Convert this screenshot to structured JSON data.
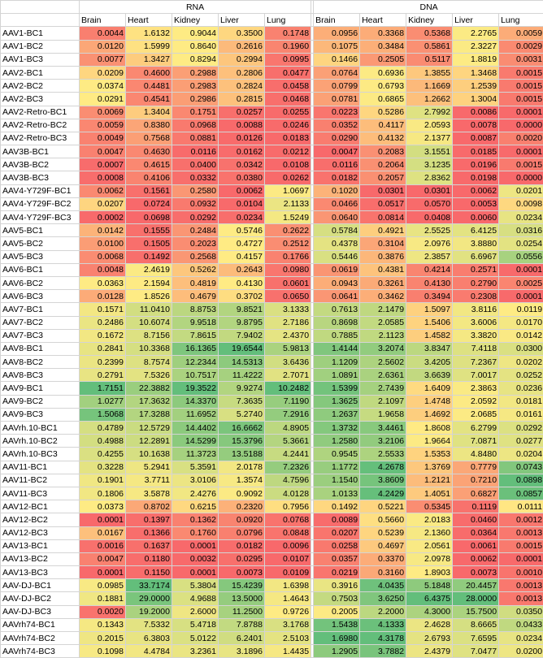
{
  "groups": [
    {
      "key": "rna",
      "label": "RNA"
    },
    {
      "key": "dna",
      "label": "DNA"
    }
  ],
  "tissues": [
    "Brain",
    "Heart",
    "Kidney",
    "Liver",
    "Lung"
  ],
  "rows": [
    {
      "label": "AAV1-BC1",
      "rna": [
        "0.0044",
        "1.6132",
        "0.9044",
        "0.3500",
        "0.1748"
      ],
      "dna": [
        "0.0956",
        "0.3368",
        "0.5368",
        "2.2765",
        "0.0059"
      ]
    },
    {
      "label": "AAV1-BC2",
      "rna": [
        "0.0120",
        "1.5999",
        "0.8640",
        "0.2616",
        "0.1960"
      ],
      "dna": [
        "0.1075",
        "0.3484",
        "0.5861",
        "2.3227",
        "0.0029"
      ]
    },
    {
      "label": "AAV1-BC3",
      "rna": [
        "0.0077",
        "1.3427",
        "0.8294",
        "0.2994",
        "0.0995"
      ],
      "dna": [
        "0.1466",
        "0.2505",
        "0.5117",
        "1.8819",
        "0.0031"
      ]
    },
    {
      "label": "AAV2-BC1",
      "rna": [
        "0.0209",
        "0.4600",
        "0.2988",
        "0.2806",
        "0.0477"
      ],
      "dna": [
        "0.0764",
        "0.6936",
        "1.3855",
        "1.3468",
        "0.0015"
      ]
    },
    {
      "label": "AAV2-BC2",
      "rna": [
        "0.0374",
        "0.4481",
        "0.2983",
        "0.2824",
        "0.0458"
      ],
      "dna": [
        "0.0799",
        "0.6793",
        "1.1669",
        "1.2539",
        "0.0015"
      ]
    },
    {
      "label": "AAV2-BC3",
      "rna": [
        "0.0291",
        "0.4541",
        "0.2986",
        "0.2815",
        "0.0468"
      ],
      "dna": [
        "0.0781",
        "0.6865",
        "1.2662",
        "1.3004",
        "0.0015"
      ]
    },
    {
      "label": "AAV2-Retro-BC1",
      "rna": [
        "0.0069",
        "1.3404",
        "0.1751",
        "0.0257",
        "0.0255"
      ],
      "dna": [
        "0.0223",
        "0.5286",
        "2.7992",
        "0.0086",
        "0.0001"
      ]
    },
    {
      "label": "AAV2-Retro-BC2",
      "rna": [
        "0.0059",
        "0.8380",
        "0.0968",
        "0.0088",
        "0.0246"
      ],
      "dna": [
        "0.0352",
        "0.4117",
        "2.0593",
        "0.0078",
        "0.0000"
      ]
    },
    {
      "label": "AAV2-Retro-BC3",
      "rna": [
        "0.0049",
        "0.7568",
        "0.0881",
        "0.0126",
        "0.0183"
      ],
      "dna": [
        "0.0290",
        "0.4132",
        "2.1377",
        "0.0087",
        "0.0020"
      ]
    },
    {
      "label": "AAV3B-BC1",
      "rna": [
        "0.0047",
        "0.4630",
        "0.0116",
        "0.0162",
        "0.0212"
      ],
      "dna": [
        "0.0047",
        "0.2083",
        "3.1551",
        "0.0185",
        "0.0001"
      ]
    },
    {
      "label": "AAV3B-BC2",
      "rna": [
        "0.0007",
        "0.4615",
        "0.0400",
        "0.0342",
        "0.0108"
      ],
      "dna": [
        "0.0116",
        "0.2064",
        "3.1235",
        "0.0196",
        "0.0015"
      ]
    },
    {
      "label": "AAV3B-BC3",
      "rna": [
        "0.0008",
        "0.4106",
        "0.0332",
        "0.0380",
        "0.0262"
      ],
      "dna": [
        "0.0182",
        "0.2057",
        "2.8362",
        "0.0198",
        "0.0000"
      ]
    },
    {
      "label": "AAV4-Y729F-BC1",
      "rna": [
        "0.0062",
        "0.1561",
        "0.2580",
        "0.0062",
        "1.0697"
      ],
      "dna": [
        "0.1020",
        "0.0301",
        "0.0301",
        "0.0062",
        "0.0201"
      ]
    },
    {
      "label": "AAV4-Y729F-BC2",
      "rna": [
        "0.0207",
        "0.0724",
        "0.0932",
        "0.0104",
        "2.1133"
      ],
      "dna": [
        "0.0466",
        "0.0517",
        "0.0570",
        "0.0053",
        "0.0098"
      ]
    },
    {
      "label": "AAV4-Y729F-BC3",
      "rna": [
        "0.0002",
        "0.0698",
        "0.0292",
        "0.0234",
        "1.5249"
      ],
      "dna": [
        "0.0640",
        "0.0814",
        "0.0408",
        "0.0060",
        "0.0234"
      ]
    },
    {
      "label": "AAV5-BC1",
      "rna": [
        "0.0142",
        "0.1555",
        "0.2484",
        "0.5746",
        "0.2622"
      ],
      "dna": [
        "0.5784",
        "0.4921",
        "2.5525",
        "6.4125",
        "0.0316"
      ]
    },
    {
      "label": "AAV5-BC2",
      "rna": [
        "0.0100",
        "0.1505",
        "0.2023",
        "0.4727",
        "0.2512"
      ],
      "dna": [
        "0.4378",
        "0.3104",
        "2.0976",
        "3.8880",
        "0.0254"
      ]
    },
    {
      "label": "AAV5-BC3",
      "rna": [
        "0.0068",
        "0.1492",
        "0.2568",
        "0.4157",
        "0.1766"
      ],
      "dna": [
        "0.5446",
        "0.3876",
        "2.3857",
        "6.6967",
        "0.0556"
      ]
    },
    {
      "label": "AAV6-BC1",
      "rna": [
        "0.0048",
        "2.4619",
        "0.5262",
        "0.2643",
        "0.0980"
      ],
      "dna": [
        "0.0619",
        "0.4381",
        "0.4214",
        "0.2571",
        "0.0001"
      ]
    },
    {
      "label": "AAV6-BC2",
      "rna": [
        "0.0363",
        "2.1594",
        "0.4819",
        "0.4130",
        "0.0601"
      ],
      "dna": [
        "0.0943",
        "0.3261",
        "0.4130",
        "0.2790",
        "0.0025"
      ]
    },
    {
      "label": "AAV6-BC3",
      "rna": [
        "0.0128",
        "1.8526",
        "0.4679",
        "0.3702",
        "0.0650"
      ],
      "dna": [
        "0.0641",
        "0.3462",
        "0.3494",
        "0.2308",
        "0.0001"
      ]
    },
    {
      "label": "AAV7-BC1",
      "rna": [
        "0.1571",
        "11.0410",
        "8.8753",
        "9.8521",
        "3.1333"
      ],
      "dna": [
        "0.7613",
        "2.1479",
        "1.5097",
        "3.8116",
        "0.0119"
      ]
    },
    {
      "label": "AAV7-BC2",
      "rna": [
        "0.2486",
        "10.6074",
        "9.9518",
        "9.8795",
        "2.7186"
      ],
      "dna": [
        "0.8698",
        "2.0585",
        "1.5406",
        "3.6006",
        "0.0170"
      ]
    },
    {
      "label": "AAV7-BC3",
      "rna": [
        "0.1672",
        "8.7156",
        "7.8615",
        "7.9402",
        "2.4370"
      ],
      "dna": [
        "0.7885",
        "2.1123",
        "1.4582",
        "3.3820",
        "0.0142"
      ]
    },
    {
      "label": "AAV8-BC1",
      "rna": [
        "0.2841",
        "10.3368",
        "16.1365",
        "19.6544",
        "5.9813"
      ],
      "dna": [
        "1.4144",
        "3.2074",
        "3.8347",
        "7.4118",
        "0.0300"
      ]
    },
    {
      "label": "AAV8-BC2",
      "rna": [
        "0.2399",
        "8.7574",
        "12.2344",
        "14.5313",
        "3.6436"
      ],
      "dna": [
        "1.1209",
        "2.5602",
        "3.4205",
        "7.2367",
        "0.0202"
      ]
    },
    {
      "label": "AAV8-BC3",
      "rna": [
        "0.2791",
        "7.5326",
        "10.7517",
        "11.4222",
        "2.7071"
      ],
      "dna": [
        "1.0891",
        "2.6361",
        "3.6639",
        "7.0017",
        "0.0252"
      ]
    },
    {
      "label": "AAV9-BC1",
      "rna": [
        "1.7151",
        "22.3882",
        "19.3522",
        "9.9274",
        "10.2482"
      ],
      "dna": [
        "1.5399",
        "2.7439",
        "1.6409",
        "2.3863",
        "0.0236"
      ]
    },
    {
      "label": "AAV9-BC2",
      "rna": [
        "1.0277",
        "17.3632",
        "14.3370",
        "7.3635",
        "7.1190"
      ],
      "dna": [
        "1.3625",
        "2.1097",
        "1.4748",
        "2.0592",
        "0.0181"
      ]
    },
    {
      "label": "AAV9-BC3",
      "rna": [
        "1.5068",
        "17.3288",
        "11.6952",
        "5.2740",
        "7.2916"
      ],
      "dna": [
        "1.2637",
        "1.9658",
        "1.4692",
        "2.0685",
        "0.0161"
      ]
    },
    {
      "label": "AAVrh.10-BC1",
      "rna": [
        "0.4789",
        "12.5729",
        "14.4402",
        "16.6662",
        "4.8905"
      ],
      "dna": [
        "1.3732",
        "3.4461",
        "1.8608",
        "6.2799",
        "0.0292"
      ]
    },
    {
      "label": "AAVrh.10-BC2",
      "rna": [
        "0.4988",
        "12.2891",
        "14.5299",
        "15.3796",
        "5.3661"
      ],
      "dna": [
        "1.2580",
        "3.2106",
        "1.9664",
        "7.0871",
        "0.0277"
      ]
    },
    {
      "label": "AAVrh.10-BC3",
      "rna": [
        "0.4255",
        "10.1638",
        "11.3723",
        "13.5188",
        "4.2441"
      ],
      "dna": [
        "0.9545",
        "2.5533",
        "1.5353",
        "4.8480",
        "0.0204"
      ]
    },
    {
      "label": "AAV11-BC1",
      "rna": [
        "0.3228",
        "5.2941",
        "5.3591",
        "2.0178",
        "7.2326"
      ],
      "dna": [
        "1.1772",
        "4.2678",
        "1.3769",
        "0.7779",
        "0.0743"
      ]
    },
    {
      "label": "AAV11-BC2",
      "rna": [
        "0.1901",
        "3.7711",
        "3.0106",
        "1.3574",
        "4.7596"
      ],
      "dna": [
        "1.1540",
        "3.8609",
        "1.2121",
        "0.7210",
        "0.0898"
      ]
    },
    {
      "label": "AAV11-BC3",
      "rna": [
        "0.1806",
        "3.5878",
        "2.4276",
        "0.9092",
        "4.0128"
      ],
      "dna": [
        "1.0133",
        "4.2429",
        "1.4051",
        "0.6827",
        "0.0857"
      ]
    },
    {
      "label": "AAV12-BC1",
      "rna": [
        "0.0373",
        "0.8702",
        "0.6215",
        "0.2320",
        "0.7956"
      ],
      "dna": [
        "0.1492",
        "0.5221",
        "0.5345",
        "0.1119",
        "0.0111"
      ]
    },
    {
      "label": "AAV12-BC2",
      "rna": [
        "0.0001",
        "0.1397",
        "0.1362",
        "0.0920",
        "0.0768"
      ],
      "dna": [
        "0.0089",
        "0.5660",
        "2.0183",
        "0.0460",
        "0.0012"
      ]
    },
    {
      "label": "AAV12-BC3",
      "rna": [
        "0.0167",
        "0.1366",
        "0.1760",
        "0.0796",
        "0.0848"
      ],
      "dna": [
        "0.0207",
        "0.5239",
        "2.1360",
        "0.0364",
        "0.0013"
      ]
    },
    {
      "label": "AAV13-BC1",
      "rna": [
        "0.0016",
        "0.1637",
        "0.0001",
        "0.0182",
        "0.0096"
      ],
      "dna": [
        "0.0258",
        "0.4697",
        "2.0561",
        "0.0061",
        "0.0015"
      ]
    },
    {
      "label": "AAV13-BC2",
      "rna": [
        "0.0047",
        "0.1180",
        "0.0032",
        "0.0295",
        "0.0107"
      ],
      "dna": [
        "0.0357",
        "0.3370",
        "2.0978",
        "0.0062",
        "0.0001"
      ]
    },
    {
      "label": "AAV13-BC3",
      "rna": [
        "0.0001",
        "0.1150",
        "0.0001",
        "0.0073",
        "0.0109"
      ],
      "dna": [
        "0.0219",
        "0.3160",
        "1.8903",
        "0.0073",
        "0.0010"
      ]
    },
    {
      "label": "AAV-DJ-BC1",
      "rna": [
        "0.0985",
        "33.7174",
        "5.3804",
        "15.4239",
        "1.6398"
      ],
      "dna": [
        "0.3916",
        "4.0435",
        "5.1848",
        "20.4457",
        "0.0013"
      ]
    },
    {
      "label": "AAV-DJ-BC2",
      "rna": [
        "0.1881",
        "29.0000",
        "4.9688",
        "13.5000",
        "1.4643"
      ],
      "dna": [
        "0.7503",
        "3.6250",
        "6.4375",
        "28.0000",
        "0.0013"
      ]
    },
    {
      "label": "AAV-DJ-BC3",
      "rna": [
        "0.0020",
        "19.2000",
        "2.6000",
        "11.2500",
        "0.9726"
      ],
      "dna": [
        "0.2005",
        "2.2000",
        "4.3000",
        "15.7500",
        "0.0350"
      ]
    },
    {
      "label": "AAVrh74-BC1",
      "rna": [
        "0.1343",
        "7.5332",
        "5.4718",
        "7.8788",
        "3.1768"
      ],
      "dna": [
        "1.5438",
        "4.1333",
        "2.4628",
        "8.6665",
        "0.0433"
      ]
    },
    {
      "label": "AAVrh74-BC2",
      "rna": [
        "0.2015",
        "6.3803",
        "5.0122",
        "6.2401",
        "2.5103"
      ],
      "dna": [
        "1.6980",
        "4.3178",
        "2.6793",
        "7.6595",
        "0.0234"
      ]
    },
    {
      "label": "AAVrh74-BC3",
      "rna": [
        "0.1098",
        "4.4784",
        "3.2361",
        "3.1896",
        "1.4435"
      ],
      "dna": [
        "1.2905",
        "3.7882",
        "2.4379",
        "7.0477",
        "0.0200"
      ]
    }
  ],
  "colors": {
    "low": "#f8696b",
    "mid": "#ffeb84",
    "high": "#63be7b"
  }
}
